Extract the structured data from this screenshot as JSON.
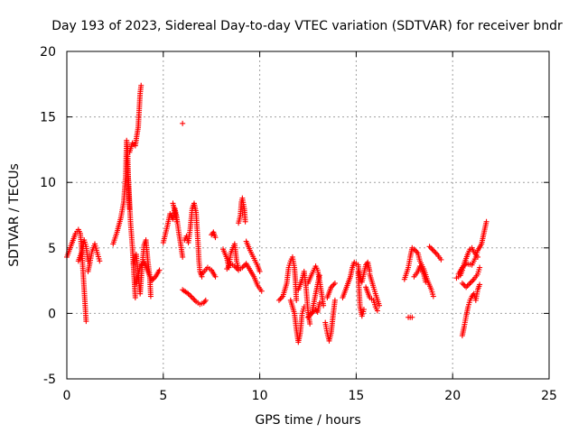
{
  "chart_data": {
    "type": "scatter",
    "title": "Day 193 of 2023, Sidereal Day-to-day VTEC variation (SDTVAR) for receiver bndr",
    "xlabel": "GPS time / hours",
    "ylabel": "SDTVAR / TECUs",
    "xlim": [
      0,
      25
    ],
    "ylim": [
      -5,
      20
    ],
    "xticks": [
      "0",
      "5",
      "10",
      "15",
      "20",
      "25"
    ],
    "yticks": [
      "-5",
      "0",
      "5",
      "10",
      "15",
      "20"
    ],
    "grid": true,
    "marker": "+",
    "color": "#ff0000",
    "series": [
      {
        "name": "bndr",
        "segments": [
          [
            [
              0.0,
              4.3
            ],
            [
              0.25,
              5.3
            ],
            [
              0.45,
              6.1
            ],
            [
              0.6,
              6.4
            ],
            [
              0.7,
              6.1
            ],
            [
              0.75,
              5.2
            ],
            [
              0.8,
              4.2
            ],
            [
              0.85,
              3.0
            ],
            [
              0.9,
              1.8
            ],
            [
              0.95,
              0.6
            ],
            [
              1.0,
              -0.6
            ]
          ],
          [
            [
              0.6,
              4.0
            ],
            [
              0.8,
              4.8
            ],
            [
              0.9,
              5.6
            ],
            [
              1.0,
              5.1
            ],
            [
              1.1,
              4.0
            ]
          ],
          [
            [
              1.1,
              3.2
            ],
            [
              1.2,
              3.9
            ],
            [
              1.3,
              4.7
            ],
            [
              1.45,
              5.3
            ],
            [
              1.6,
              4.5
            ],
            [
              1.7,
              4.0
            ]
          ],
          [
            [
              2.4,
              5.3
            ],
            [
              2.6,
              6.2
            ],
            [
              2.8,
              7.3
            ],
            [
              2.95,
              8.5
            ],
            [
              3.05,
              10.5
            ],
            [
              3.1,
              13.2
            ],
            [
              3.15,
              12.6
            ],
            [
              3.2,
              9.5
            ],
            [
              3.25,
              8.0
            ]
          ],
          [
            [
              3.25,
              12.3
            ],
            [
              3.4,
              13.0
            ],
            [
              3.55,
              12.8
            ],
            [
              3.62,
              13.5
            ],
            [
              3.7,
              14.2
            ],
            [
              3.75,
              15.5
            ],
            [
              3.8,
              16.8
            ],
            [
              3.85,
              17.4
            ]
          ],
          [
            [
              3.1,
              12.0
            ],
            [
              3.2,
              10.0
            ],
            [
              3.3,
              7.0
            ],
            [
              3.4,
              5.0
            ],
            [
              3.5,
              2.5
            ],
            [
              3.55,
              1.2
            ]
          ],
          [
            [
              3.45,
              3.8
            ],
            [
              3.6,
              4.5
            ],
            [
              3.7,
              3.0
            ],
            [
              3.8,
              1.5
            ],
            [
              3.9,
              3.5
            ],
            [
              4.0,
              5.2
            ],
            [
              4.1,
              5.6
            ],
            [
              4.2,
              4.0
            ],
            [
              4.3,
              2.8
            ],
            [
              4.35,
              1.3
            ]
          ],
          [
            [
              3.6,
              2.3
            ],
            [
              3.8,
              3.6
            ],
            [
              4.0,
              3.9
            ],
            [
              4.2,
              3.2
            ],
            [
              4.4,
              2.5
            ],
            [
              4.6,
              2.8
            ],
            [
              4.8,
              3.3
            ]
          ],
          [
            [
              5.0,
              5.4
            ],
            [
              5.2,
              6.6
            ],
            [
              5.35,
              7.6
            ],
            [
              5.5,
              7.2
            ],
            [
              5.6,
              8.0
            ],
            [
              5.7,
              7.3
            ],
            [
              5.8,
              6.2
            ],
            [
              5.9,
              5.3
            ],
            [
              6.0,
              4.3
            ]
          ],
          [
            [
              5.5,
              8.4
            ],
            [
              5.6,
              7.8
            ],
            [
              5.7,
              7.0
            ]
          ],
          [
            [
              6.0,
              14.5
            ]
          ],
          [
            [
              6.1,
              5.6
            ],
            [
              6.2,
              5.9
            ],
            [
              6.3,
              5.4
            ],
            [
              6.4,
              6.5
            ],
            [
              6.5,
              8.0
            ],
            [
              6.6,
              8.4
            ],
            [
              6.7,
              7.7
            ],
            [
              6.75,
              6.5
            ],
            [
              6.8,
              5.4
            ],
            [
              6.85,
              4.0
            ],
            [
              6.9,
              3.2
            ],
            [
              7.0,
              2.8
            ]
          ],
          [
            [
              6.0,
              1.8
            ],
            [
              6.3,
              1.5
            ],
            [
              6.5,
              1.2
            ],
            [
              6.7,
              0.9
            ],
            [
              6.9,
              0.7
            ],
            [
              7.1,
              0.8
            ],
            [
              7.2,
              1.0
            ]
          ],
          [
            [
              7.0,
              3.0
            ],
            [
              7.3,
              3.5
            ],
            [
              7.5,
              3.3
            ],
            [
              7.7,
              2.8
            ]
          ],
          [
            [
              7.5,
              6.0
            ],
            [
              7.6,
              6.2
            ],
            [
              7.7,
              5.8
            ]
          ],
          [
            [
              8.1,
              4.9
            ],
            [
              8.3,
              4.2
            ],
            [
              8.4,
              3.5
            ],
            [
              8.5,
              4.6
            ],
            [
              8.7,
              5.3
            ],
            [
              8.8,
              4.0
            ],
            [
              8.9,
              3.5
            ]
          ],
          [
            [
              8.9,
              6.9
            ],
            [
              9.0,
              7.5
            ],
            [
              9.05,
              8.5
            ],
            [
              9.1,
              8.8
            ],
            [
              9.2,
              8.0
            ],
            [
              9.25,
              7.0
            ]
          ],
          [
            [
              8.3,
              3.4
            ],
            [
              8.5,
              3.8
            ],
            [
              8.7,
              3.6
            ],
            [
              8.9,
              3.3
            ],
            [
              9.1,
              3.5
            ],
            [
              9.3,
              3.8
            ],
            [
              9.5,
              3.3
            ],
            [
              9.7,
              2.8
            ],
            [
              9.9,
              2.1
            ],
            [
              10.1,
              1.7
            ]
          ],
          [
            [
              9.3,
              5.5
            ],
            [
              9.5,
              4.8
            ],
            [
              9.7,
              4.2
            ],
            [
              9.9,
              3.6
            ],
            [
              10.0,
              3.2
            ]
          ],
          [
            [
              11.0,
              1.0
            ],
            [
              11.2,
              1.3
            ],
            [
              11.4,
              2.3
            ],
            [
              11.5,
              3.5
            ],
            [
              11.6,
              4.0
            ],
            [
              11.7,
              4.3
            ],
            [
              11.8,
              3.5
            ],
            [
              11.85,
              2.5
            ],
            [
              11.9,
              1.0
            ]
          ],
          [
            [
              11.6,
              1.0
            ],
            [
              11.8,
              0.0
            ],
            [
              11.9,
              -1.2
            ],
            [
              12.0,
              -2.2
            ],
            [
              12.1,
              -1.5
            ],
            [
              12.2,
              0.0
            ],
            [
              12.3,
              0.5
            ]
          ],
          [
            [
              12.0,
              1.8
            ],
            [
              12.2,
              2.6
            ],
            [
              12.3,
              3.2
            ],
            [
              12.4,
              2.0
            ],
            [
              12.5,
              0.2
            ],
            [
              12.6,
              -0.8
            ]
          ],
          [
            [
              12.5,
              2.3
            ],
            [
              12.7,
              3.0
            ],
            [
              12.9,
              3.6
            ],
            [
              13.0,
              3.3
            ],
            [
              13.1,
              2.5
            ],
            [
              13.2,
              1.6
            ],
            [
              13.3,
              0.6
            ]
          ],
          [
            [
              12.5,
              -0.3
            ],
            [
              12.7,
              0.0
            ],
            [
              12.9,
              1.5
            ],
            [
              13.0,
              2.2
            ],
            [
              13.1,
              2.9
            ]
          ],
          [
            [
              12.7,
              0.0
            ],
            [
              12.9,
              0.3
            ],
            [
              13.0,
              0.1
            ],
            [
              13.1,
              0.8
            ]
          ],
          [
            [
              13.4,
              -0.7
            ],
            [
              13.5,
              -1.5
            ],
            [
              13.6,
              -2.1
            ],
            [
              13.7,
              -1.5
            ],
            [
              13.8,
              -0.2
            ],
            [
              13.9,
              1.0
            ]
          ],
          [
            [
              13.5,
              1.2
            ],
            [
              13.7,
              2.0
            ],
            [
              13.9,
              2.3
            ]
          ],
          [
            [
              14.3,
              1.2
            ],
            [
              14.5,
              2.0
            ],
            [
              14.7,
              2.8
            ],
            [
              14.8,
              3.5
            ],
            [
              14.9,
              3.9
            ],
            [
              15.1,
              3.7
            ],
            [
              15.2,
              2.8
            ],
            [
              15.3,
              2.4
            ],
            [
              15.5,
              3.7
            ],
            [
              15.6,
              3.9
            ],
            [
              15.7,
              3.2
            ]
          ],
          [
            [
              15.1,
              3.2
            ],
            [
              15.2,
              0.5
            ],
            [
              15.3,
              -0.2
            ],
            [
              15.4,
              0.3
            ]
          ],
          [
            [
              15.5,
              2.0
            ],
            [
              15.7,
              1.2
            ],
            [
              15.9,
              1.0
            ],
            [
              16.0,
              0.5
            ],
            [
              16.1,
              0.2
            ]
          ],
          [
            [
              15.7,
              3.0
            ],
            [
              15.9,
              2.0
            ],
            [
              16.0,
              1.5
            ],
            [
              16.2,
              0.6
            ]
          ],
          [
            [
              17.5,
              2.6
            ],
            [
              17.7,
              3.5
            ],
            [
              17.8,
              4.3
            ],
            [
              17.9,
              5.0
            ],
            [
              18.0,
              4.9
            ],
            [
              18.2,
              4.6
            ],
            [
              18.3,
              4.0
            ],
            [
              18.5,
              3.4
            ],
            [
              18.7,
              2.5
            ],
            [
              18.9,
              1.8
            ],
            [
              19.0,
              1.3
            ]
          ],
          [
            [
              17.7,
              -0.3
            ],
            [
              17.9,
              -0.3
            ]
          ],
          [
            [
              18.0,
              2.8
            ],
            [
              18.2,
              3.2
            ],
            [
              18.3,
              3.6
            ],
            [
              18.5,
              3.0
            ],
            [
              18.6,
              2.4
            ]
          ],
          [
            [
              18.8,
              5.1
            ],
            [
              19.0,
              4.8
            ],
            [
              19.2,
              4.5
            ],
            [
              19.4,
              4.1
            ]
          ],
          [
            [
              20.2,
              2.7
            ],
            [
              20.4,
              2.9
            ],
            [
              20.5,
              3.3
            ],
            [
              20.6,
              3.8
            ],
            [
              20.7,
              4.2
            ],
            [
              20.8,
              4.6
            ],
            [
              20.9,
              4.9
            ],
            [
              21.0,
              5.0
            ],
            [
              21.1,
              4.7
            ],
            [
              21.3,
              4.3
            ]
          ],
          [
            [
              20.3,
              3.0
            ],
            [
              20.5,
              3.5
            ],
            [
              20.7,
              3.8
            ],
            [
              21.0,
              3.7
            ],
            [
              21.2,
              4.3
            ],
            [
              21.3,
              4.8
            ],
            [
              21.5,
              5.3
            ],
            [
              21.6,
              6.0
            ],
            [
              21.75,
              7.0
            ]
          ],
          [
            [
              20.5,
              2.3
            ],
            [
              20.7,
              2.0
            ],
            [
              20.9,
              2.3
            ],
            [
              21.1,
              2.6
            ],
            [
              21.3,
              3.0
            ],
            [
              21.4,
              3.5
            ]
          ],
          [
            [
              20.5,
              -1.7
            ],
            [
              20.6,
              -1.0
            ],
            [
              20.7,
              -0.2
            ],
            [
              20.8,
              0.5
            ],
            [
              20.9,
              1.0
            ],
            [
              21.0,
              1.3
            ],
            [
              21.1,
              1.5
            ],
            [
              21.2,
              1.0
            ],
            [
              21.3,
              1.8
            ],
            [
              21.4,
              2.2
            ]
          ]
        ]
      }
    ]
  }
}
